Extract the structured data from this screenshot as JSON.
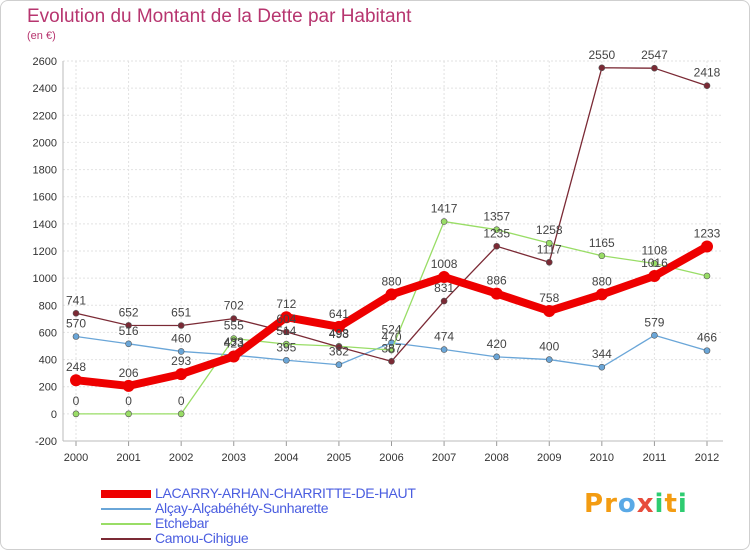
{
  "header": {
    "title": "Evolution du Montant de la Dette par Habitant",
    "subtitle": "(en €)"
  },
  "logo": {
    "text": "Proxiti",
    "letters": [
      {
        "ch": "P",
        "color": "#f39c12"
      },
      {
        "ch": "r",
        "color": "#f39c12"
      },
      {
        "ch": "o",
        "color": "#5aa9e6"
      },
      {
        "ch": "x",
        "color": "#e74c3c"
      },
      {
        "ch": "i",
        "color": "#2ecc71"
      },
      {
        "ch": "t",
        "color": "#f39c12"
      },
      {
        "ch": "i",
        "color": "#2ecc71"
      }
    ]
  },
  "chart_data": {
    "type": "line",
    "x": [
      "2000",
      "2001",
      "2002",
      "2003",
      "2004",
      "2005",
      "2006",
      "2007",
      "2008",
      "2009",
      "2010",
      "2011",
      "2012"
    ],
    "ylim": [
      -200,
      2600
    ],
    "yticks": [
      "-200",
      "0",
      "200",
      "400",
      "600",
      "800",
      "1000",
      "1200",
      "1400",
      "1600",
      "1800",
      "2000",
      "2200",
      "2400",
      "2600"
    ],
    "grid": true,
    "legend_position": "bottom-left",
    "series": [
      {
        "name": "LACARRY-ARHAN-CHARRITTE-DE-HAUT",
        "color": "#ee0000",
        "values": [
          248,
          206,
          293,
          423,
          712,
          641,
          880,
          1008,
          886,
          758,
          880,
          1016,
          1233
        ],
        "labels": [
          "248",
          "206",
          "293",
          "423",
          "712",
          "641",
          "880",
          "1008",
          "886",
          "758",
          "880",
          "1016",
          "1233"
        ],
        "thick": true
      },
      {
        "name": "Alçay-Alçabéhéty-Sunharette",
        "color": "#6aa6d8",
        "values": [
          570,
          516,
          460,
          433,
          395,
          362,
          524,
          474,
          420,
          400,
          344,
          579,
          466
        ],
        "labels": [
          "570",
          "516",
          "460",
          "433",
          "395",
          "362",
          "524",
          "474",
          "420",
          "400",
          "344",
          "579",
          "466"
        ]
      },
      {
        "name": "Etchebar",
        "color": "#99dd66",
        "values": [
          0,
          0,
          0,
          555,
          514,
          498,
          470,
          1417,
          1357,
          1258,
          1165,
          1108,
          1016
        ],
        "labels": [
          "0",
          "0",
          "0",
          "555",
          "514",
          "498",
          "470",
          "1417",
          "1357",
          "1258",
          "1165",
          "1108",
          ""
        ]
      },
      {
        "name": "Camou-Cihigue",
        "color": "#7b2a35",
        "values": [
          741,
          652,
          651,
          702,
          604,
          493,
          387,
          831,
          1235,
          1117,
          2550,
          2547,
          2418
        ],
        "labels": [
          "741",
          "652",
          "651",
          "702",
          "604",
          "493",
          "387",
          "831",
          "1235",
          "1117",
          "2550",
          "2547",
          "2418"
        ]
      }
    ]
  }
}
